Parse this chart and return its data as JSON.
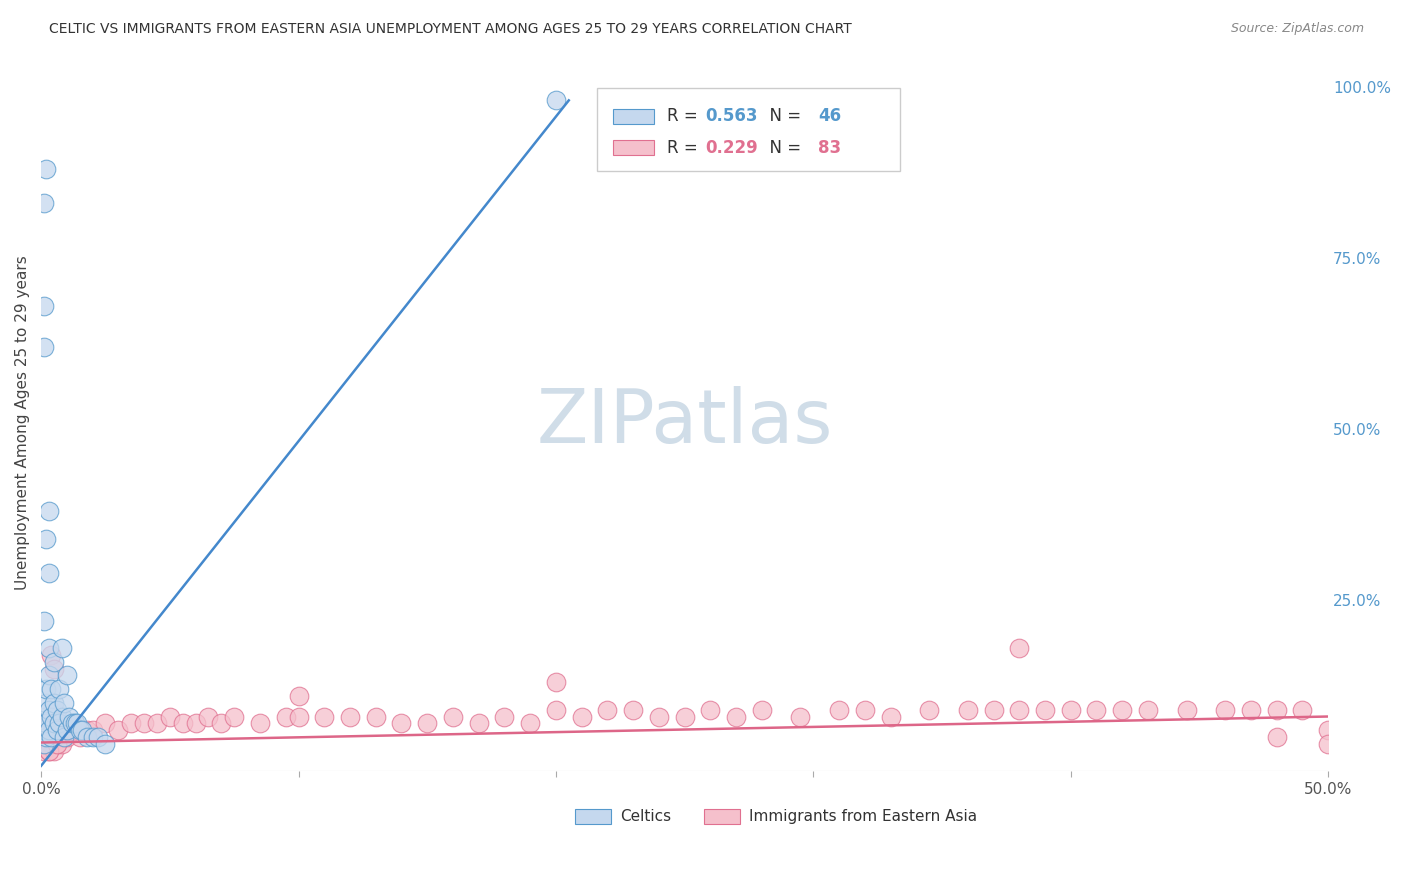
{
  "title": "CELTIC VS IMMIGRANTS FROM EASTERN ASIA UNEMPLOYMENT AMONG AGES 25 TO 29 YEARS CORRELATION CHART",
  "source": "Source: ZipAtlas.com",
  "ylabel": "Unemployment Among Ages 25 to 29 years",
  "ylabel_right_ticks": [
    "100.0%",
    "75.0%",
    "50.0%",
    "25.0%"
  ],
  "ylabel_right_vals": [
    1.0,
    0.75,
    0.5,
    0.25
  ],
  "celtics_R": "0.563",
  "celtics_N": "46",
  "eastern_asia_R": "0.229",
  "eastern_asia_N": "83",
  "legend_label_1": "Celtics",
  "legend_label_2": "Immigrants from Eastern Asia",
  "blue_fill": "#c5d8ee",
  "pink_fill": "#f5c0cc",
  "blue_edge": "#5599cc",
  "pink_edge": "#e07090",
  "blue_line": "#4488cc",
  "pink_line": "#dd6688",
  "watermark_color": "#d0dde8",
  "background_color": "#ffffff",
  "grid_color": "#dddddd",
  "title_color": "#333333",
  "axis_color": "#555555",
  "right_tick_color": "#5599cc"
}
